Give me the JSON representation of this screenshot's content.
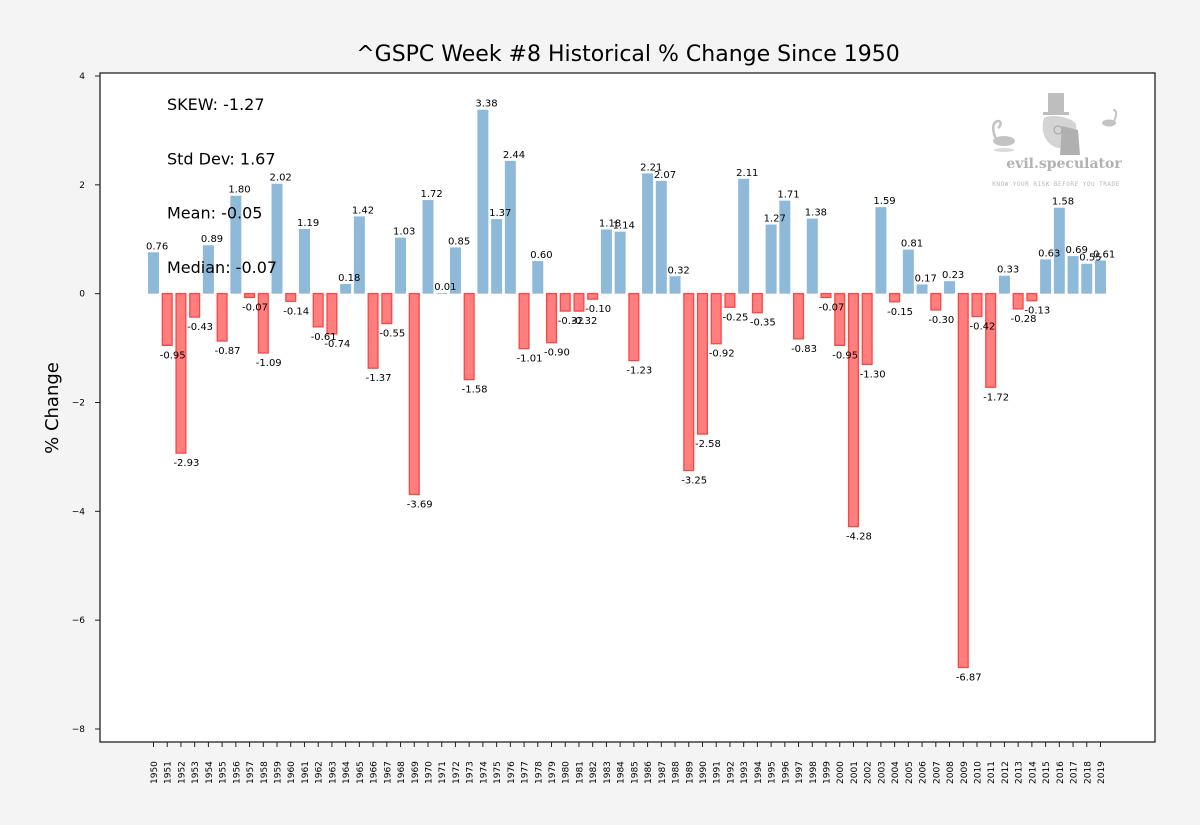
{
  "chart_data": {
    "type": "bar",
    "title": "^GSPC Week #8 Historical % Change Since 1950",
    "xlabel": "",
    "ylabel": "% Change",
    "ylim": [
      -8.3,
      4.05
    ],
    "yticks": [
      4,
      2,
      0,
      -2,
      -4,
      -6,
      -8
    ],
    "ytick_labels": [
      "4",
      "2",
      "0",
      "−2",
      "−4",
      "−6",
      "−8"
    ],
    "grid": false,
    "colors": {
      "positive": "#8fb9d9",
      "negative_fill": "#ff7f7f",
      "negative_edge": "#ff4444"
    },
    "stats": [
      "SKEW: -1.27",
      "Std Dev: 1.67",
      "Mean: -0.05",
      "Median: -0.07"
    ],
    "watermark": {
      "brand": "evil.speculator",
      "tagline": "KNOW YOUR RISK BEFORE YOU TRADE"
    },
    "categories": [
      "1950",
      "1951",
      "1952",
      "1953",
      "1954",
      "1955",
      "1956",
      "1957",
      "1958",
      "1959",
      "1960",
      "1961",
      "1962",
      "1963",
      "1964",
      "1965",
      "1966",
      "1967",
      "1968",
      "1969",
      "1970",
      "1971",
      "1972",
      "1973",
      "1974",
      "1975",
      "1976",
      "1977",
      "1978",
      "1979",
      "1980",
      "1981",
      "1982",
      "1983",
      "1984",
      "1985",
      "1986",
      "1987",
      "1988",
      "1989",
      "1990",
      "1991",
      "1992",
      "1993",
      "1994",
      "1995",
      "1996",
      "1997",
      "1998",
      "1999",
      "2000",
      "2001",
      "2002",
      "2003",
      "2004",
      "2005",
      "2006",
      "2007",
      "2008",
      "2009",
      "2010",
      "2011",
      "2012",
      "2013",
      "2014",
      "2015",
      "2016",
      "2017",
      "2018",
      "2019"
    ],
    "values": [
      0.76,
      -0.95,
      -2.93,
      -0.43,
      0.89,
      -0.87,
      1.8,
      -0.07,
      -1.09,
      2.02,
      -0.14,
      1.19,
      -0.61,
      -0.74,
      0.18,
      1.42,
      -1.37,
      -0.55,
      1.03,
      -3.69,
      1.72,
      0.01,
      0.85,
      -1.58,
      3.38,
      1.37,
      2.44,
      -1.01,
      0.6,
      -0.9,
      -0.32,
      -0.32,
      -0.1,
      1.18,
      1.14,
      -1.23,
      2.21,
      2.07,
      0.32,
      -3.25,
      -2.58,
      -0.92,
      -0.25,
      2.11,
      -0.35,
      1.27,
      1.71,
      -0.83,
      1.38,
      -0.07,
      -0.95,
      -4.28,
      -1.3,
      1.59,
      -0.15,
      0.81,
      0.17,
      -0.3,
      0.23,
      -6.87,
      -0.42,
      -1.72,
      0.33,
      -0.28,
      -0.13,
      0.63,
      1.58,
      0.69,
      0.55,
      0.61
    ]
  }
}
